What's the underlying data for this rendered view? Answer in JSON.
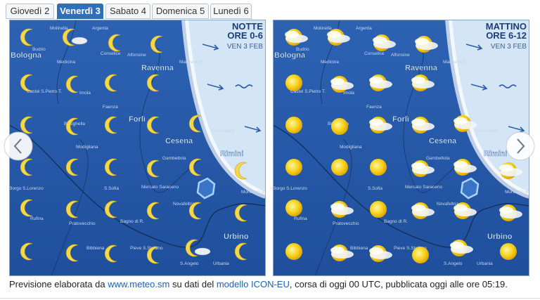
{
  "tabs": [
    "Giovedì 2",
    "Venerdì 3",
    "Sabato 4",
    "Domenica 5",
    "Lunedì 6"
  ],
  "panels": [
    {
      "period": "NOTTE",
      "hours": "ORE 0-6",
      "date": "VEN 3 FEB"
    },
    {
      "period": "MATTINO",
      "hours": "ORE 6-12",
      "date": "VEN 3 FEB"
    }
  ],
  "map_labels": [
    "Molinella",
    "Argenta",
    "Budrio",
    "Bologna",
    "Medicina",
    "Conselice",
    "Alfonsine",
    "Ravenna",
    "Marina di R.",
    "Castel S.Pietro T.",
    "Imola",
    "Faenza",
    "Forlì",
    "Brisighella",
    "Modigliana",
    "Cesena",
    "Cesenatico",
    "Gambettola",
    "Rimini",
    "Borgo S.Lorenzo",
    "S.Sofia",
    "Mercato Saraceno",
    "Novafeltria",
    "Morciano di R.",
    "Rufina",
    "Pratovecchio",
    "Bagno di R.",
    "Bibbiena",
    "Pieve S.Stefano",
    "Urbino",
    "S.Angelo",
    "Urbania"
  ],
  "footer": {
    "prefix": "Previsione elaborata da ",
    "site_link": "www.meteo.sm",
    "middle": " su dati del ",
    "model_link": "modello ICON-EU",
    "suffix": ", corsa di oggi 00 UTC, pubblicata oggi alle ore 05:19."
  }
}
